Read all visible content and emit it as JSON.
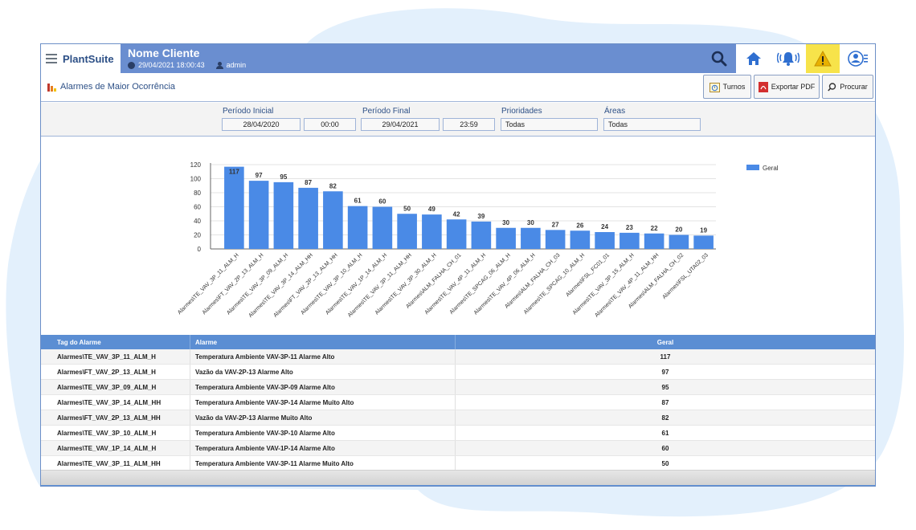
{
  "header": {
    "brand": "PlantSuite",
    "client_name": "Nome Cliente",
    "datetime": "29/04/2021 18:00:43",
    "user": "admin",
    "colors": {
      "bar": "#6a8ed0",
      "alert_bg": "#f7e34a"
    },
    "icons": [
      "menu-icon",
      "search-icon",
      "home-icon",
      "alarm-bell-icon",
      "warning-icon",
      "user-settings-icon"
    ]
  },
  "page": {
    "title": "Alarmes de Maior Ocorrência",
    "actions": {
      "shifts": "Turnos",
      "export_pdf": "Exportar PDF",
      "search": "Procurar"
    }
  },
  "filters": {
    "period_start_label": "Período Inicial",
    "period_start_date": "28/04/2020",
    "period_start_time": "00:00",
    "period_end_label": "Período Final",
    "period_end_date": "29/04/2021",
    "period_end_time": "23:59",
    "priorities_label": "Prioridades",
    "priorities_value": "Todas",
    "areas_label": "Áreas",
    "areas_value": "Todas"
  },
  "chart_data": {
    "type": "bar",
    "categories": [
      "Alarmes\\TE_VAV_3P_11_ALM_H",
      "Alarmes\\FT_VAV_2P_13_ALM_H",
      "Alarmes\\TE_VAV_3P_09_ALM_H",
      "Alarmes\\TE_VAV_3P_14_ALM_HH",
      "Alarmes\\FT_VAV_2P_13_ALM_HH",
      "Alarmes\\TE_VAV_3P_10_ALM_H",
      "Alarmes\\TE_VAV_1P_14_ALM_H",
      "Alarmes\\TE_VAV_3P_11_ALM_HH",
      "Alarmes\\TE_VAV_3P_30_ALM_H",
      "Alarmes\\ALM_FALHA_CH_01",
      "Alarmes\\TE_VAV_4P_11_ALM_H",
      "Alarmes\\TE_SPCAG_06_ALM_H",
      "Alarmes\\TE_VAV_4P_06_ALM_H",
      "Alarmes\\ALM_FALHA_CH_03",
      "Alarmes\\TE_SPCAG_10_ALM_H",
      "Alarmes\\FSL_FC01_01",
      "Alarmes\\TE_VAV_3P_15_ALM_H",
      "Alarmes\\TE_VAV_4P_11_ALM_HH",
      "Alarmes\\ALM_FALHA_CH_02",
      "Alarmes\\FSL_UTA02_03"
    ],
    "series": [
      {
        "name": "Geral",
        "values": [
          117,
          97,
          95,
          87,
          82,
          61,
          60,
          50,
          49,
          42,
          39,
          30,
          30,
          27,
          26,
          24,
          23,
          22,
          20,
          19
        ]
      }
    ],
    "yticks": [
      0,
      20,
      40,
      60,
      80,
      100,
      120
    ],
    "ylim": [
      0,
      120
    ],
    "grid": true,
    "legend": "top-right",
    "bar_color": "#4a8ae6"
  },
  "table": {
    "headers": [
      "Tag do Alarme",
      "Alarme",
      "Geral"
    ],
    "rows": [
      [
        "Alarmes\\TE_VAV_3P_11_ALM_H",
        "Temperatura Ambiente VAV-3P-11 Alarme Alto",
        "117"
      ],
      [
        "Alarmes\\FT_VAV_2P_13_ALM_H",
        "Vazão da VAV-2P-13 Alarme Alto",
        "97"
      ],
      [
        "Alarmes\\TE_VAV_3P_09_ALM_H",
        "Temperatura Ambiente VAV-3P-09 Alarme Alto",
        "95"
      ],
      [
        "Alarmes\\TE_VAV_3P_14_ALM_HH",
        "Temperatura Ambiente VAV-3P-14 Alarme Muito Alto",
        "87"
      ],
      [
        "Alarmes\\FT_VAV_2P_13_ALM_HH",
        "Vazão da VAV-2P-13 Alarme Muito Alto",
        "82"
      ],
      [
        "Alarmes\\TE_VAV_3P_10_ALM_H",
        "Temperatura Ambiente VAV-3P-10 Alarme Alto",
        "61"
      ],
      [
        "Alarmes\\TE_VAV_1P_14_ALM_H",
        "Temperatura Ambiente VAV-1P-14 Alarme Alto",
        "60"
      ],
      [
        "Alarmes\\TE_VAV_3P_11_ALM_HH",
        "Temperatura Ambiente VAV-3P-11 Alarme Muito Alto",
        "50"
      ]
    ]
  }
}
